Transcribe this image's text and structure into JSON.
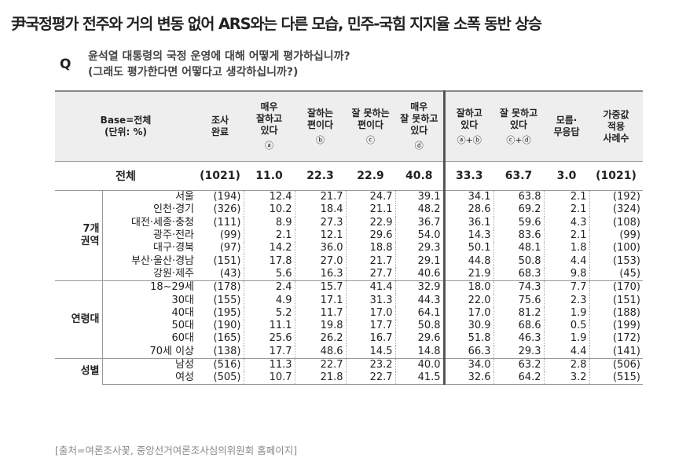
{
  "title": "尹국정평가 전주와 거의 변동 없어 ARS와는 다른 모습, 민주-국힘 지지율 소폭 동반 상승",
  "question": {
    "mark": "Q",
    "lines": [
      "윤석열 대통령의 국정 운영에 대해 어떻게 평가하십니까?",
      "(그래도 평가한다면 어떻다고 생각하십니까?)"
    ]
  },
  "table": {
    "header": [
      {
        "lines": [
          "Base=전체",
          "(단위: %)"
        ]
      },
      {
        "lines": [
          "조사",
          "완료"
        ]
      },
      {
        "lines": [
          "매우",
          "잘하고",
          "있다"
        ],
        "marker": "ⓐ"
      },
      {
        "lines": [
          "잘하는",
          "편이다"
        ],
        "marker": "ⓑ"
      },
      {
        "lines": [
          "잘 못하는",
          "편이다"
        ],
        "marker": "ⓒ"
      },
      {
        "lines": [
          "매우",
          "잘 못하고",
          "있다"
        ],
        "marker": "ⓓ"
      },
      {
        "lines": [
          "잘하고",
          "있다"
        ],
        "marker": "ⓐ+ⓑ"
      },
      {
        "lines": [
          "잘 못하고",
          "있다"
        ],
        "marker": "ⓒ+ⓓ"
      },
      {
        "lines": [
          "모름·",
          "무응답"
        ]
      },
      {
        "lines": [
          "가중값",
          "적용",
          "사례수"
        ]
      }
    ],
    "total": [
      "전체",
      "(1021)",
      "11.0",
      "22.3",
      "22.9",
      "40.8",
      "33.3",
      "63.7",
      "3.0",
      "(1021)"
    ],
    "groups": [
      {
        "label": [
          "7개",
          "권역"
        ],
        "rows": [
          [
            "서울",
            "(194)",
            "12.4",
            "21.7",
            "24.7",
            "39.1",
            "34.1",
            "63.8",
            "2.1",
            "(192)"
          ],
          [
            "인천·경기",
            "(326)",
            "10.2",
            "18.4",
            "21.1",
            "48.2",
            "28.6",
            "69.2",
            "2.1",
            "(324)"
          ],
          [
            "대전·세종·충청",
            "(111)",
            "8.9",
            "27.3",
            "22.9",
            "36.7",
            "36.1",
            "59.6",
            "4.3",
            "(108)"
          ],
          [
            "광주·전라",
            "(99)",
            "2.1",
            "12.1",
            "29.6",
            "54.0",
            "14.3",
            "83.6",
            "2.1",
            "(99)"
          ],
          [
            "대구·경북",
            "(97)",
            "14.2",
            "36.0",
            "18.8",
            "29.3",
            "50.1",
            "48.1",
            "1.8",
            "(100)"
          ],
          [
            "부산·울산·경남",
            "(151)",
            "17.8",
            "27.0",
            "21.7",
            "29.1",
            "44.8",
            "50.8",
            "4.4",
            "(153)"
          ],
          [
            "강원·제주",
            "(43)",
            "5.6",
            "16.3",
            "27.7",
            "40.6",
            "21.9",
            "68.3",
            "9.8",
            "(45)"
          ]
        ]
      },
      {
        "label": [
          "연령대"
        ],
        "rows": [
          [
            "18~29세",
            "(178)",
            "2.4",
            "15.7",
            "41.4",
            "32.9",
            "18.0",
            "74.3",
            "7.7",
            "(170)"
          ],
          [
            "30대",
            "(155)",
            "4.9",
            "17.1",
            "31.3",
            "44.3",
            "22.0",
            "75.6",
            "2.3",
            "(151)"
          ],
          [
            "40대",
            "(195)",
            "5.2",
            "11.7",
            "17.0",
            "64.1",
            "17.0",
            "81.2",
            "1.9",
            "(188)"
          ],
          [
            "50대",
            "(190)",
            "11.1",
            "19.8",
            "17.7",
            "50.8",
            "30.9",
            "68.6",
            "0.5",
            "(199)"
          ],
          [
            "60대",
            "(165)",
            "25.6",
            "26.2",
            "16.7",
            "29.6",
            "51.8",
            "46.3",
            "1.9",
            "(172)"
          ],
          [
            "70세 이상",
            "(138)",
            "17.7",
            "48.6",
            "14.5",
            "14.8",
            "66.3",
            "29.3",
            "4.4",
            "(141)"
          ]
        ]
      },
      {
        "label": [
          "성별"
        ],
        "rows": [
          [
            "남성",
            "(516)",
            "11.3",
            "22.7",
            "23.2",
            "40.0",
            "34.0",
            "63.2",
            "2.8",
            "(506)"
          ],
          [
            "여성",
            "(505)",
            "10.7",
            "21.8",
            "22.7",
            "41.5",
            "32.6",
            "64.2",
            "3.2",
            "(515)"
          ]
        ]
      }
    ]
  },
  "source": "[출처=여론조사꽃, 중앙선거여론조사심의위원회 홈페이지]"
}
